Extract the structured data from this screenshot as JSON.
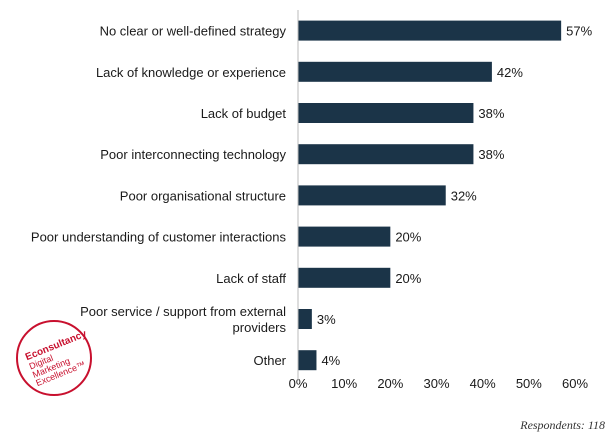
{
  "chart_data": {
    "type": "bar",
    "orientation": "horizontal",
    "categories": [
      [
        "No clear or well-defined strategy"
      ],
      [
        "Lack of knowledge or experience"
      ],
      [
        "Lack of budget"
      ],
      [
        "Poor interconnecting technology"
      ],
      [
        "Poor organisational structure"
      ],
      [
        "Poor understanding of customer interactions"
      ],
      [
        "Lack of staff"
      ],
      [
        "Poor service / support from external",
        "providers"
      ],
      [
        "Other"
      ]
    ],
    "values": [
      57,
      42,
      38,
      38,
      32,
      20,
      20,
      3,
      4
    ],
    "value_labels": [
      "57%",
      "42%",
      "38%",
      "38%",
      "32%",
      "20%",
      "20%",
      "3%",
      "4%"
    ],
    "xlim": [
      0,
      60
    ],
    "xticks": [
      0,
      10,
      20,
      30,
      40,
      50,
      60
    ],
    "xtick_labels": [
      "0%",
      "10%",
      "20%",
      "30%",
      "40%",
      "50%",
      "60%"
    ],
    "bar_color": "#1b3448",
    "grid": false
  },
  "footnote": "Respondents: 118",
  "logo": {
    "brand": "Econsultancy",
    "line2": "Digital",
    "line3": "Marketing",
    "line4": "Excellence™",
    "color": "#c8102e"
  }
}
